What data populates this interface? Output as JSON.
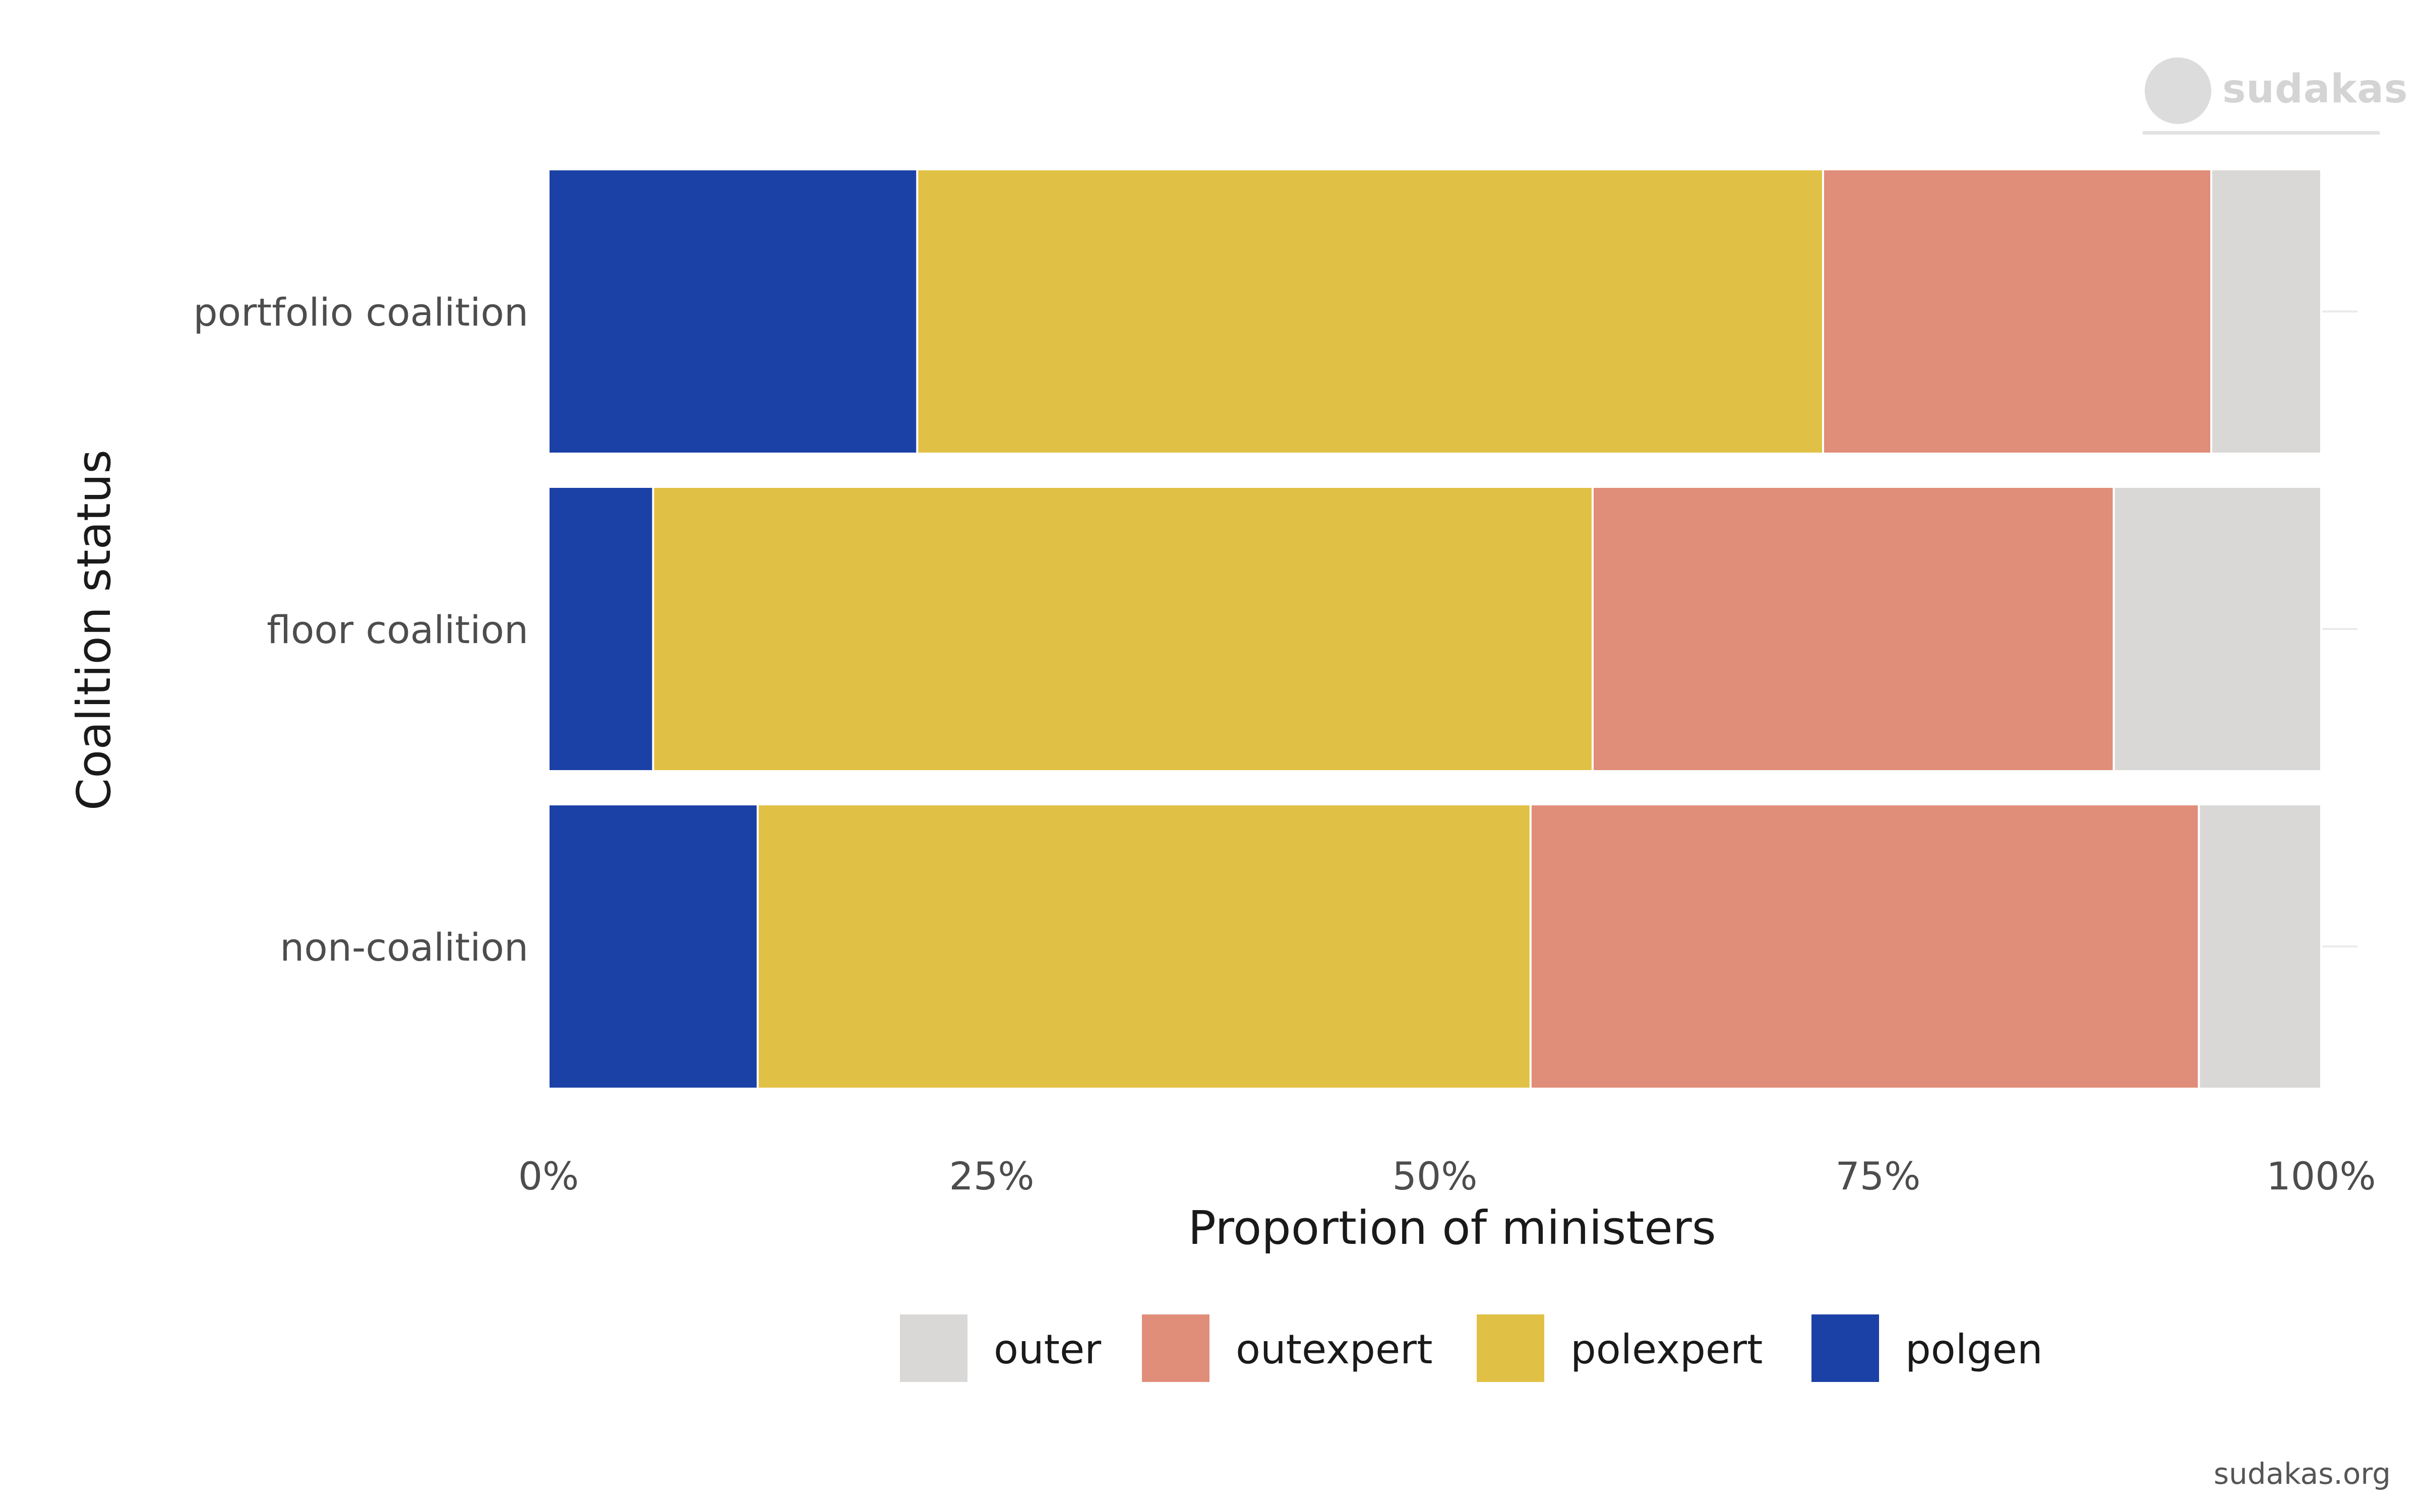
{
  "brand": {
    "logo_text": "sudakas",
    "footer": "sudakas.org"
  },
  "chart_data": {
    "type": "bar",
    "orientation": "horizontal",
    "stacked": true,
    "categories": [
      "portfolio coalition",
      "floor coalition",
      "non-coalition"
    ],
    "series": [
      {
        "name": "polgen",
        "color": "#1c41a6",
        "values": [
          0.208,
          0.059,
          0.118
        ]
      },
      {
        "name": "polexpert",
        "color": "#e1c145",
        "values": [
          0.511,
          0.53,
          0.436
        ]
      },
      {
        "name": "outexpert",
        "color": "#e08d79",
        "values": [
          0.219,
          0.294,
          0.377
        ]
      },
      {
        "name": "outer",
        "color": "#d9d8d6",
        "values": [
          0.062,
          0.117,
          0.069
        ]
      }
    ],
    "xlabel": "Proportion of ministers",
    "ylabel": "Coalition status",
    "xlim": [
      0,
      1
    ],
    "x_ticks": [
      0,
      0.25,
      0.5,
      0.75,
      1
    ],
    "x_tick_labels": [
      "0%",
      "25%",
      "50%",
      "75%",
      "100%"
    ],
    "legend": {
      "placement": "bottom",
      "order": [
        "outer",
        "outexpert",
        "polexpert",
        "polgen"
      ]
    },
    "grid": false
  }
}
